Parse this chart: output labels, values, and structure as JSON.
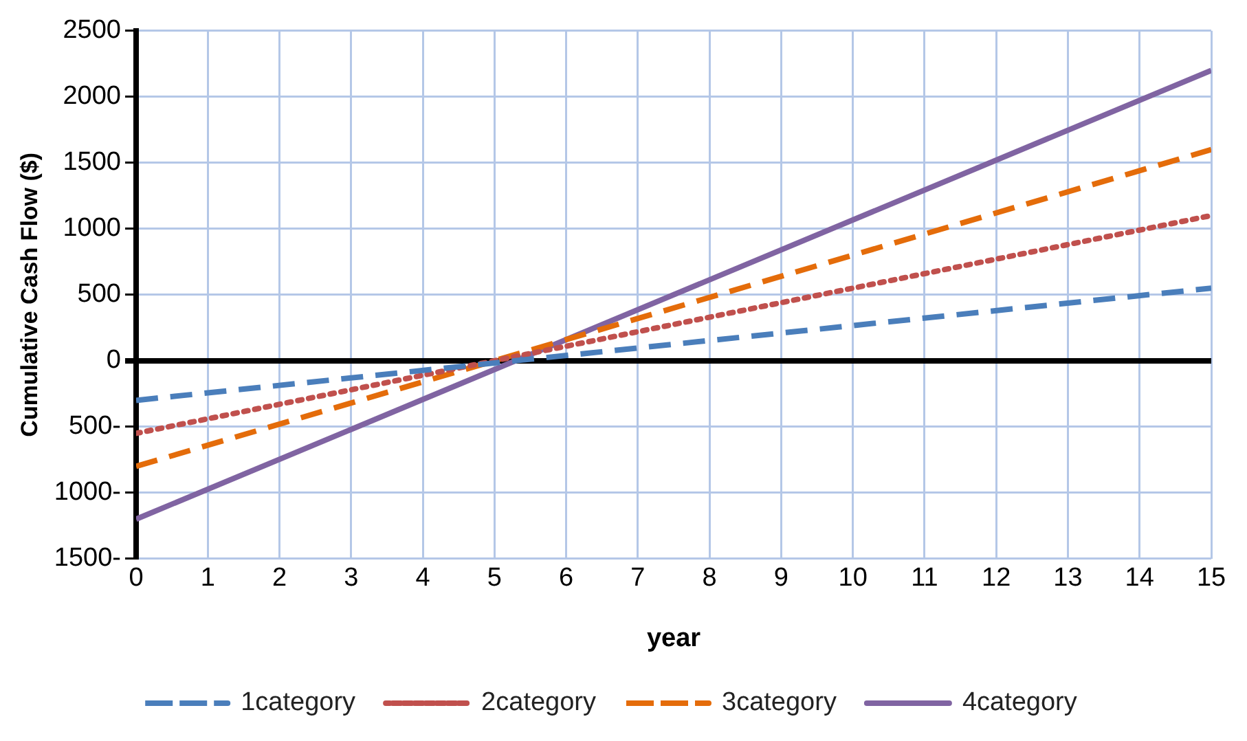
{
  "chart_data": {
    "type": "line",
    "xlabel": "year",
    "ylabel": "Cumulative Cash Flow ($)",
    "x": [
      0,
      15
    ],
    "series": [
      {
        "name": "1category",
        "color": "#4a7ebb",
        "values": [
          -300,
          550
        ],
        "line_style": "dashed"
      },
      {
        "name": "2category",
        "color": "#c0504d",
        "values": [
          -550,
          1100
        ],
        "line_style": "dotted"
      },
      {
        "name": "3category",
        "color": "#e46c0a",
        "values": [
          -800,
          1600
        ],
        "line_style": "dashed"
      },
      {
        "name": "4category",
        "color": "#8064a2",
        "values": [
          -1200,
          2200
        ],
        "line_style": "solid"
      }
    ],
    "xlim": [
      0,
      15
    ],
    "xticks": [
      0,
      1,
      2,
      3,
      4,
      5,
      6,
      7,
      8,
      9,
      10,
      11,
      12,
      13,
      14,
      15
    ],
    "ylim": [
      -1500,
      2500
    ],
    "yticks": [
      {
        "value": -1500,
        "label": "1500-"
      },
      {
        "value": -1000,
        "label": "1000-"
      },
      {
        "value": -500,
        "label": "500-"
      },
      0,
      500,
      1000,
      1500,
      2000,
      2500
    ],
    "grid": true,
    "legend": "bottom",
    "marker": "none"
  }
}
